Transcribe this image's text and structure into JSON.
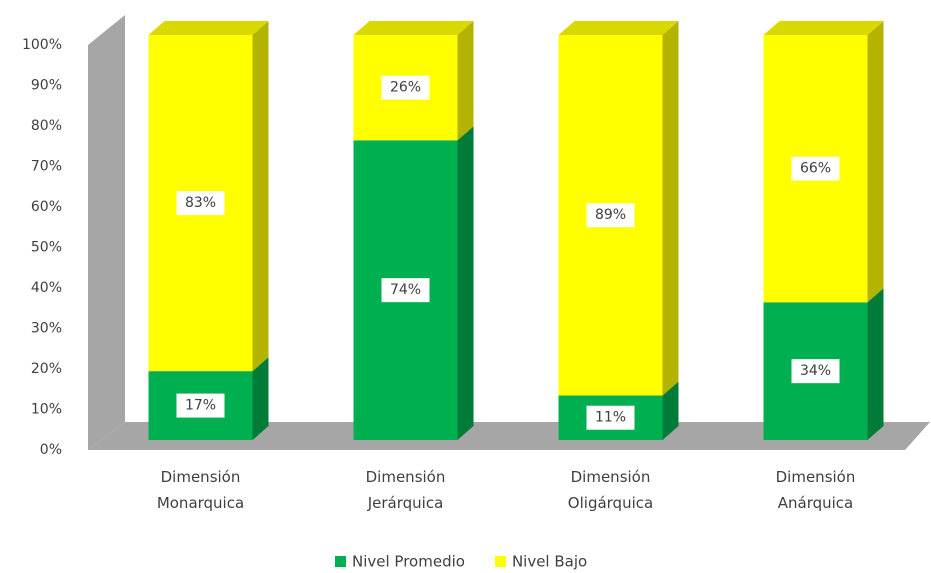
{
  "chart_data": {
    "type": "bar",
    "stacked": true,
    "categories": [
      "Dimensión Monarquica",
      "Dimensión Jerárquica",
      "Dimensión Oligárquica",
      "Dimensión Anárquica"
    ],
    "series": [
      {
        "name": "Nivel Promedio",
        "color": "#00b050",
        "values": [
          17,
          74,
          11,
          34
        ],
        "value_labels": [
          "17%",
          "74%",
          "11%",
          "34%"
        ]
      },
      {
        "name": "Nivel Bajo",
        "color": "#ffff00",
        "values": [
          83,
          26,
          89,
          66
        ],
        "value_labels": [
          "83%",
          "26%",
          "89%",
          "66%"
        ]
      }
    ],
    "ylim": [
      0,
      100
    ],
    "yticks": [
      {
        "value": 0,
        "label": "0%"
      },
      {
        "value": 10,
        "label": "10%"
      },
      {
        "value": 20,
        "label": "20%"
      },
      {
        "value": 30,
        "label": "30%"
      },
      {
        "value": 40,
        "label": "40%"
      },
      {
        "value": 50,
        "label": "50%"
      },
      {
        "value": 60,
        "label": "60%"
      },
      {
        "value": 70,
        "label": "70%"
      },
      {
        "value": 80,
        "label": "80%"
      },
      {
        "value": 90,
        "label": "90%"
      },
      {
        "value": 100,
        "label": "100%"
      }
    ],
    "grid": false,
    "legend": "bottom"
  }
}
